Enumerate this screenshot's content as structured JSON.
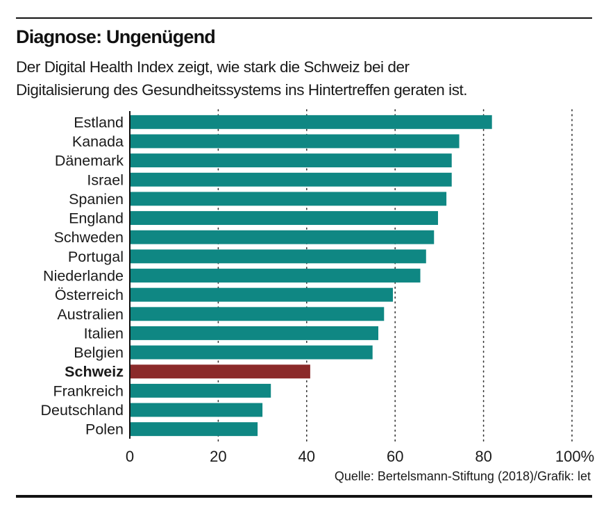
{
  "header": {
    "title": "Diagnose: Ungenügend",
    "subtitle_line1": "Der Digital Health Index zeigt, wie stark die Schweiz bei der",
    "subtitle_line2": "Digitalisierung des Gesundheitssystems ins Hintertreffen geraten ist."
  },
  "footer": {
    "source": "Quelle: Bertelsmann-Stiftung (2018)/Grafik: let"
  },
  "colors": {
    "bar": "#0f8783",
    "highlight": "#8b2a2a",
    "text": "#1a1a1a",
    "grid": "#333333"
  },
  "chart_data": {
    "type": "bar",
    "orientation": "horizontal",
    "title": "Diagnose: Ungenügend",
    "subtitle": "Der Digital Health Index zeigt, wie stark die Schweiz bei der Digitalisierung des Gesundheitssystems ins Hintertreffen geraten ist.",
    "xlabel": "",
    "ylabel": "",
    "xlim": [
      0,
      100
    ],
    "x_ticks": [
      0,
      20,
      40,
      60,
      80,
      100
    ],
    "x_tick_labels": [
      "0",
      "20",
      "40",
      "60",
      "80",
      "100%"
    ],
    "grid": "vertical dotted",
    "highlight_category": "Schweiz",
    "categories": [
      "Estland",
      "Kanada",
      "Dänemark",
      "Israel",
      "Spanien",
      "England",
      "Schweden",
      "Portugal",
      "Niederlande",
      "Österreich",
      "Australien",
      "Italien",
      "Belgien",
      "Schweiz",
      "Frankreich",
      "Deutschland",
      "Polen"
    ],
    "values": [
      81.9,
      74.5,
      72.8,
      72.8,
      71.6,
      69.7,
      68.8,
      67.0,
      65.7,
      59.5,
      57.5,
      56.2,
      54.9,
      40.8,
      31.9,
      30.0,
      28.9
    ],
    "source": "Quelle: Bertelsmann-Stiftung (2018)/Grafik: let"
  }
}
